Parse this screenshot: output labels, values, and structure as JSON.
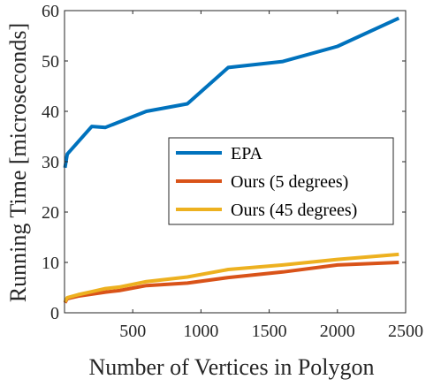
{
  "chart_data": {
    "type": "line",
    "xlabel": "Number of Vertices in Polygon",
    "ylabel": "Running Time [microseconds]",
    "xlim": [
      0,
      2500
    ],
    "ylim": [
      0,
      60
    ],
    "xticks": [
      500,
      1000,
      1500,
      2000,
      2500
    ],
    "yticks": [
      0,
      10,
      20,
      30,
      40,
      50,
      60
    ],
    "grid": false,
    "legend_position": "center-right",
    "series": [
      {
        "name": "EPA",
        "color": "#0072BD",
        "x": [
          3,
          20,
          200,
          300,
          600,
          900,
          1200,
          1600,
          2000,
          2450
        ],
        "y": [
          28.8,
          31.5,
          37.0,
          36.8,
          40.0,
          41.5,
          48.7,
          49.9,
          52.9,
          58.5
        ]
      },
      {
        "name": "Ours (5 degrees)",
        "color": "#D95319",
        "x": [
          3,
          20,
          100,
          200,
          300,
          400,
          600,
          900,
          1200,
          1600,
          2000,
          2450
        ],
        "y": [
          2.0,
          2.8,
          3.3,
          3.7,
          4.1,
          4.4,
          5.4,
          5.9,
          7.0,
          8.1,
          9.5,
          10.0
        ]
      },
      {
        "name": "Ours (45 degrees)",
        "color": "#EDB120",
        "x": [
          3,
          20,
          100,
          200,
          300,
          400,
          600,
          900,
          1200,
          1600,
          2000,
          2450
        ],
        "y": [
          2.2,
          3.0,
          3.6,
          4.2,
          4.8,
          5.1,
          6.2,
          7.1,
          8.6,
          9.5,
          10.6,
          11.6
        ]
      }
    ]
  }
}
